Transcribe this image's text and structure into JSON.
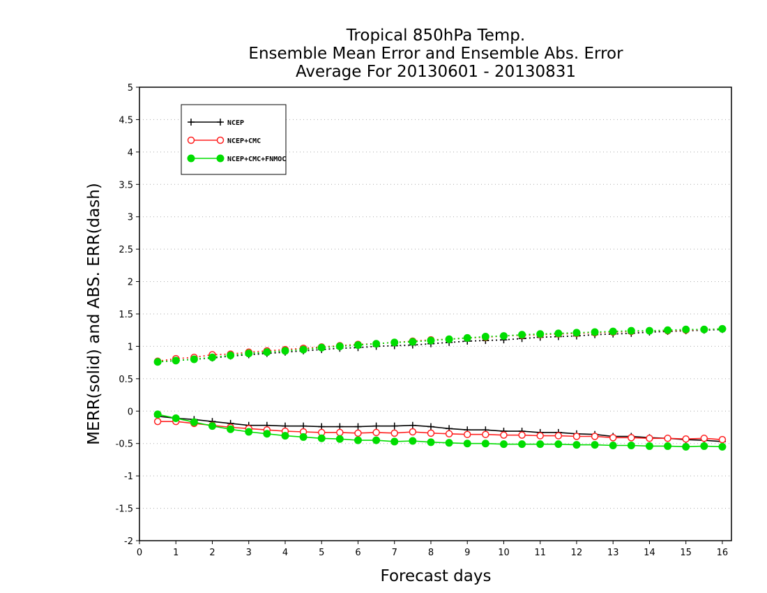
{
  "chart_data": {
    "type": "line",
    "title": [
      "Tropical 850hPa Temp.",
      "Ensemble Mean Error and Ensemble Abs. Error",
      "Average For 20130601 - 20130831"
    ],
    "xlabel": "Forecast days",
    "ylabel": "MERR(solid) and ABS. ERR(dash)",
    "xlim": [
      0,
      16.25
    ],
    "ylim": [
      -2,
      5
    ],
    "xticks": [
      "0",
      "1",
      "2",
      "3",
      "4",
      "5",
      "6",
      "7",
      "8",
      "9",
      "10",
      "11",
      "12",
      "13",
      "14",
      "15",
      "16"
    ],
    "yticks": [
      "5",
      "4.5",
      "4",
      "3.5",
      "3",
      "2.5",
      "2",
      "1.5",
      "1",
      "0.5",
      "0",
      "-0.5",
      "-1",
      "-1.5",
      "-2"
    ],
    "grid": true,
    "legend_position": "top-left",
    "x": [
      0.5,
      1,
      1.5,
      2,
      2.5,
      3,
      3.5,
      4,
      4.5,
      5,
      5.5,
      6,
      6.5,
      7,
      7.5,
      8,
      8.5,
      9,
      9.5,
      10,
      10.5,
      11,
      11.5,
      12,
      12.5,
      13,
      13.5,
      14,
      14.5,
      15,
      15.5,
      16
    ],
    "series": [
      {
        "name": "NCEP",
        "color": "#000000",
        "marker": "plus",
        "merr": [
          -0.08,
          -0.11,
          -0.13,
          -0.16,
          -0.19,
          -0.22,
          -0.22,
          -0.23,
          -0.23,
          -0.24,
          -0.24,
          -0.24,
          -0.23,
          -0.23,
          -0.22,
          -0.24,
          -0.27,
          -0.29,
          -0.29,
          -0.31,
          -0.31,
          -0.33,
          -0.33,
          -0.35,
          -0.36,
          -0.39,
          -0.39,
          -0.41,
          -0.42,
          -0.44,
          -0.45,
          -0.47
        ],
        "abs_err": [
          0.76,
          0.78,
          0.8,
          0.82,
          0.85,
          0.87,
          0.89,
          0.91,
          0.93,
          0.95,
          0.97,
          0.98,
          1.0,
          1.01,
          1.02,
          1.04,
          1.06,
          1.08,
          1.09,
          1.1,
          1.12,
          1.14,
          1.15,
          1.16,
          1.18,
          1.19,
          1.2,
          1.22,
          1.23,
          1.24,
          1.25,
          1.26
        ]
      },
      {
        "name": "NCEP+CMC",
        "color": "#ff2020",
        "marker": "open-circle",
        "merr": [
          -0.16,
          -0.16,
          -0.19,
          -0.22,
          -0.25,
          -0.27,
          -0.29,
          -0.31,
          -0.32,
          -0.33,
          -0.33,
          -0.34,
          -0.33,
          -0.34,
          -0.32,
          -0.34,
          -0.35,
          -0.36,
          -0.36,
          -0.37,
          -0.37,
          -0.38,
          -0.38,
          -0.39,
          -0.39,
          -0.41,
          -0.41,
          -0.42,
          -0.42,
          -0.43,
          -0.42,
          -0.44
        ],
        "abs_err": [
          0.77,
          0.81,
          0.83,
          0.87,
          0.88,
          0.91,
          0.93,
          0.95,
          0.97,
          0.99,
          1.01,
          1.03,
          1.04,
          1.06,
          1.08,
          1.1,
          1.11,
          1.13,
          1.14,
          1.16,
          1.17,
          1.18,
          1.19,
          1.2,
          1.21,
          1.22,
          1.23,
          1.24,
          1.24,
          1.25,
          1.26,
          1.27
        ]
      },
      {
        "name": "NCEP+CMC+FNMOC",
        "color": "#00dd00",
        "marker": "filled-circle",
        "merr": [
          -0.05,
          -0.11,
          -0.17,
          -0.23,
          -0.28,
          -0.32,
          -0.35,
          -0.38,
          -0.4,
          -0.42,
          -0.43,
          -0.45,
          -0.45,
          -0.47,
          -0.46,
          -0.48,
          -0.49,
          -0.5,
          -0.5,
          -0.51,
          -0.51,
          -0.51,
          -0.51,
          -0.52,
          -0.52,
          -0.53,
          -0.53,
          -0.54,
          -0.54,
          -0.55,
          -0.54,
          -0.55
        ],
        "abs_err": [
          0.76,
          0.78,
          0.8,
          0.83,
          0.86,
          0.89,
          0.91,
          0.93,
          0.95,
          0.98,
          1.0,
          1.02,
          1.04,
          1.06,
          1.07,
          1.09,
          1.11,
          1.13,
          1.15,
          1.16,
          1.18,
          1.19,
          1.2,
          1.21,
          1.22,
          1.23,
          1.24,
          1.24,
          1.25,
          1.26,
          1.26,
          1.27
        ]
      }
    ]
  }
}
